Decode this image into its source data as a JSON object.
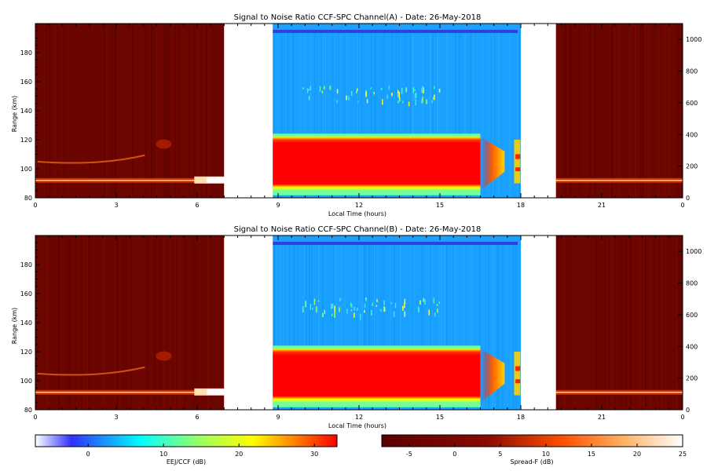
{
  "chart_data": [
    {
      "type": "heatmap",
      "title": "Signal to Noise Ratio CCF-SPC Channel(A) - Date: 26-May-2018",
      "xlabel": "Local Time (hours)",
      "ylabel": "Range (km)",
      "xlim": [
        0,
        24
      ],
      "ylim": [
        80,
        200
      ],
      "y2lim": [
        0,
        1100
      ],
      "xticks": [
        "0",
        "3",
        "6",
        "9",
        "12",
        "15",
        "18",
        "21",
        "0"
      ],
      "yticks": [
        "80",
        "100",
        "120",
        "140",
        "160",
        "180"
      ],
      "y2ticks": [
        "0",
        "200",
        "400",
        "600",
        "800",
        "1000"
      ],
      "gaps_hours": [
        [
          7.0,
          8.8
        ],
        [
          18.0,
          19.3
        ]
      ],
      "regions": [
        {
          "name": "Spread-F",
          "x_range": [
            0,
            7.0
          ],
          "background_db": -3,
          "layers_km": [
            92,
            105,
            117
          ]
        },
        {
          "name": "EEJ/CCF",
          "x_range": [
            8.8,
            18.0
          ],
          "background_db": 6,
          "echo_km": [
            85,
            122
          ],
          "echo_db": 31,
          "weak_layer_km": 150
        },
        {
          "name": "Spread-F",
          "x_range": [
            19.3,
            24.0
          ],
          "background_db": -3,
          "layers_km": [
            92
          ]
        }
      ]
    },
    {
      "type": "heatmap",
      "title": "Signal to Noise Ratio CCF-SPC Channel(B) - Date: 26-May-2018",
      "xlabel": "Local Time (hours)",
      "ylabel": "Range (km)",
      "xlim": [
        0,
        24
      ],
      "ylim": [
        80,
        200
      ],
      "y2lim": [
        0,
        1100
      ],
      "xticks": [
        "0",
        "3",
        "6",
        "9",
        "12",
        "15",
        "18",
        "21",
        "0"
      ],
      "yticks": [
        "80",
        "100",
        "120",
        "140",
        "160",
        "180"
      ],
      "y2ticks": [
        "0",
        "200",
        "400",
        "600",
        "800",
        "1000"
      ],
      "gaps_hours": [
        [
          7.0,
          8.8
        ],
        [
          18.0,
          19.3
        ]
      ],
      "regions": [
        {
          "name": "Spread-F",
          "x_range": [
            0,
            7.0
          ],
          "background_db": -3,
          "layers_km": [
            92,
            105,
            117
          ]
        },
        {
          "name": "EEJ/CCF",
          "x_range": [
            8.8,
            18.0
          ],
          "background_db": 6,
          "echo_km": [
            85,
            122
          ],
          "echo_db": 31,
          "weak_layer_km": 150
        },
        {
          "name": "Spread-F",
          "x_range": [
            19.3,
            24.0
          ],
          "background_db": -3,
          "layers_km": [
            92
          ]
        }
      ]
    }
  ],
  "colorbars": [
    {
      "label": "EEJ/CCF (dB)",
      "range": [
        -7,
        33
      ],
      "ticks": [
        "0",
        "10",
        "20",
        "30"
      ],
      "tick_values": [
        0,
        10,
        20,
        30
      ],
      "colormap": [
        "#ffffff",
        "#3030ff",
        "#00ffff",
        "#a0ff60",
        "#ffff00",
        "#ff8000",
        "#ff0000"
      ]
    },
    {
      "label": "Spread-F (dB)",
      "range": [
        -8,
        25
      ],
      "ticks": [
        "-5",
        "0",
        "5",
        "10",
        "15",
        "20",
        "25"
      ],
      "tick_values": [
        -5,
        0,
        5,
        10,
        15,
        20,
        25
      ],
      "colormap": [
        "#5a0000",
        "#a01000",
        "#ff5000",
        "#ffb060",
        "#ffffff"
      ]
    }
  ]
}
